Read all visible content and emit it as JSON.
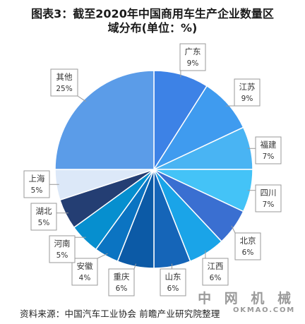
{
  "title_line1": "图表3：截至2020年中国商用车生产企业数量区",
  "title_line2": "域分布(单位：%)",
  "source": "资料来源：中国汽车工业协会 前瞻产业研究院整理",
  "brand": {
    "cn": "中 网 机 械",
    "en": "OKMAO.COM"
  },
  "chart_data": {
    "type": "pie",
    "title": "图表3：截至2020年中国商用车生产企业数量区域分布(单位：%)",
    "unit": "%",
    "slices": [
      {
        "label": "广东",
        "value": 9,
        "pct": "9%",
        "color": "#3d82e6"
      },
      {
        "label": "江苏",
        "value": 9,
        "pct": "9%",
        "color": "#3f9bef"
      },
      {
        "label": "福建",
        "value": 7,
        "pct": "7%",
        "color": "#49b4f3"
      },
      {
        "label": "四川",
        "value": 7,
        "pct": "7%",
        "color": "#44c3f7"
      },
      {
        "label": "北京",
        "value": 6,
        "pct": "6%",
        "color": "#3a6fd1"
      },
      {
        "label": "江西",
        "value": 6,
        "pct": "6%",
        "color": "#1aa4e8"
      },
      {
        "label": "山东",
        "value": 6,
        "pct": "6%",
        "color": "#1565b8"
      },
      {
        "label": "重庆",
        "value": 6,
        "pct": "6%",
        "color": "#0c5aa6"
      },
      {
        "label": "安徽",
        "value": 4,
        "pct": "4%",
        "color": "#0b74c2"
      },
      {
        "label": "河南",
        "value": 5,
        "pct": "5%",
        "color": "#068fcf"
      },
      {
        "label": "湖北",
        "value": 5,
        "pct": "5%",
        "color": "#243e73"
      },
      {
        "label": "上海",
        "value": 5,
        "pct": "5%",
        "color": "#dce8f8"
      },
      {
        "label": "其他",
        "value": 25,
        "pct": "25%",
        "color": "#5b9ce8"
      }
    ]
  }
}
